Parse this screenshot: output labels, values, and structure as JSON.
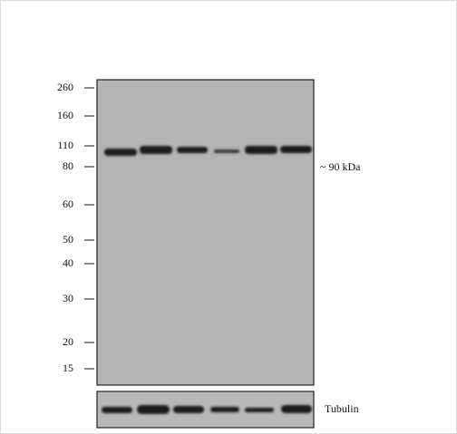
{
  "markers": [
    "260",
    "160",
    "110",
    "80",
    "60",
    "50",
    "40",
    "30",
    "20",
    "15"
  ],
  "band_label": "~ 90 kDa",
  "loading_control": "Tubulin"
}
